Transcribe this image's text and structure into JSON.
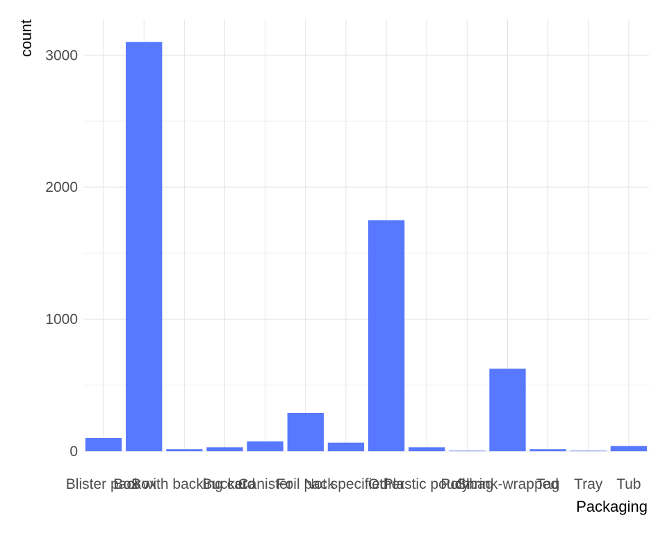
{
  "chart_data": {
    "type": "bar",
    "categories": [
      "Blister pack",
      "Box",
      "Box with backing card",
      "Bucket",
      "Canister",
      "Foil pack",
      "Not specified",
      "Other",
      "Plastic pouch",
      "Polybag",
      "Shrink-wrapped",
      "Tag",
      "Tray",
      "Tub"
    ],
    "values": [
      100,
      3100,
      15,
      30,
      75,
      290,
      65,
      1750,
      30,
      5,
      625,
      15,
      5,
      40
    ],
    "xlabel": "Packaging",
    "ylabel": "count",
    "ylim": [
      0,
      3270
    ],
    "yticks": [
      0,
      1000,
      2000,
      3000
    ],
    "grid": true,
    "colors": {
      "bar": "#5778FF"
    }
  }
}
